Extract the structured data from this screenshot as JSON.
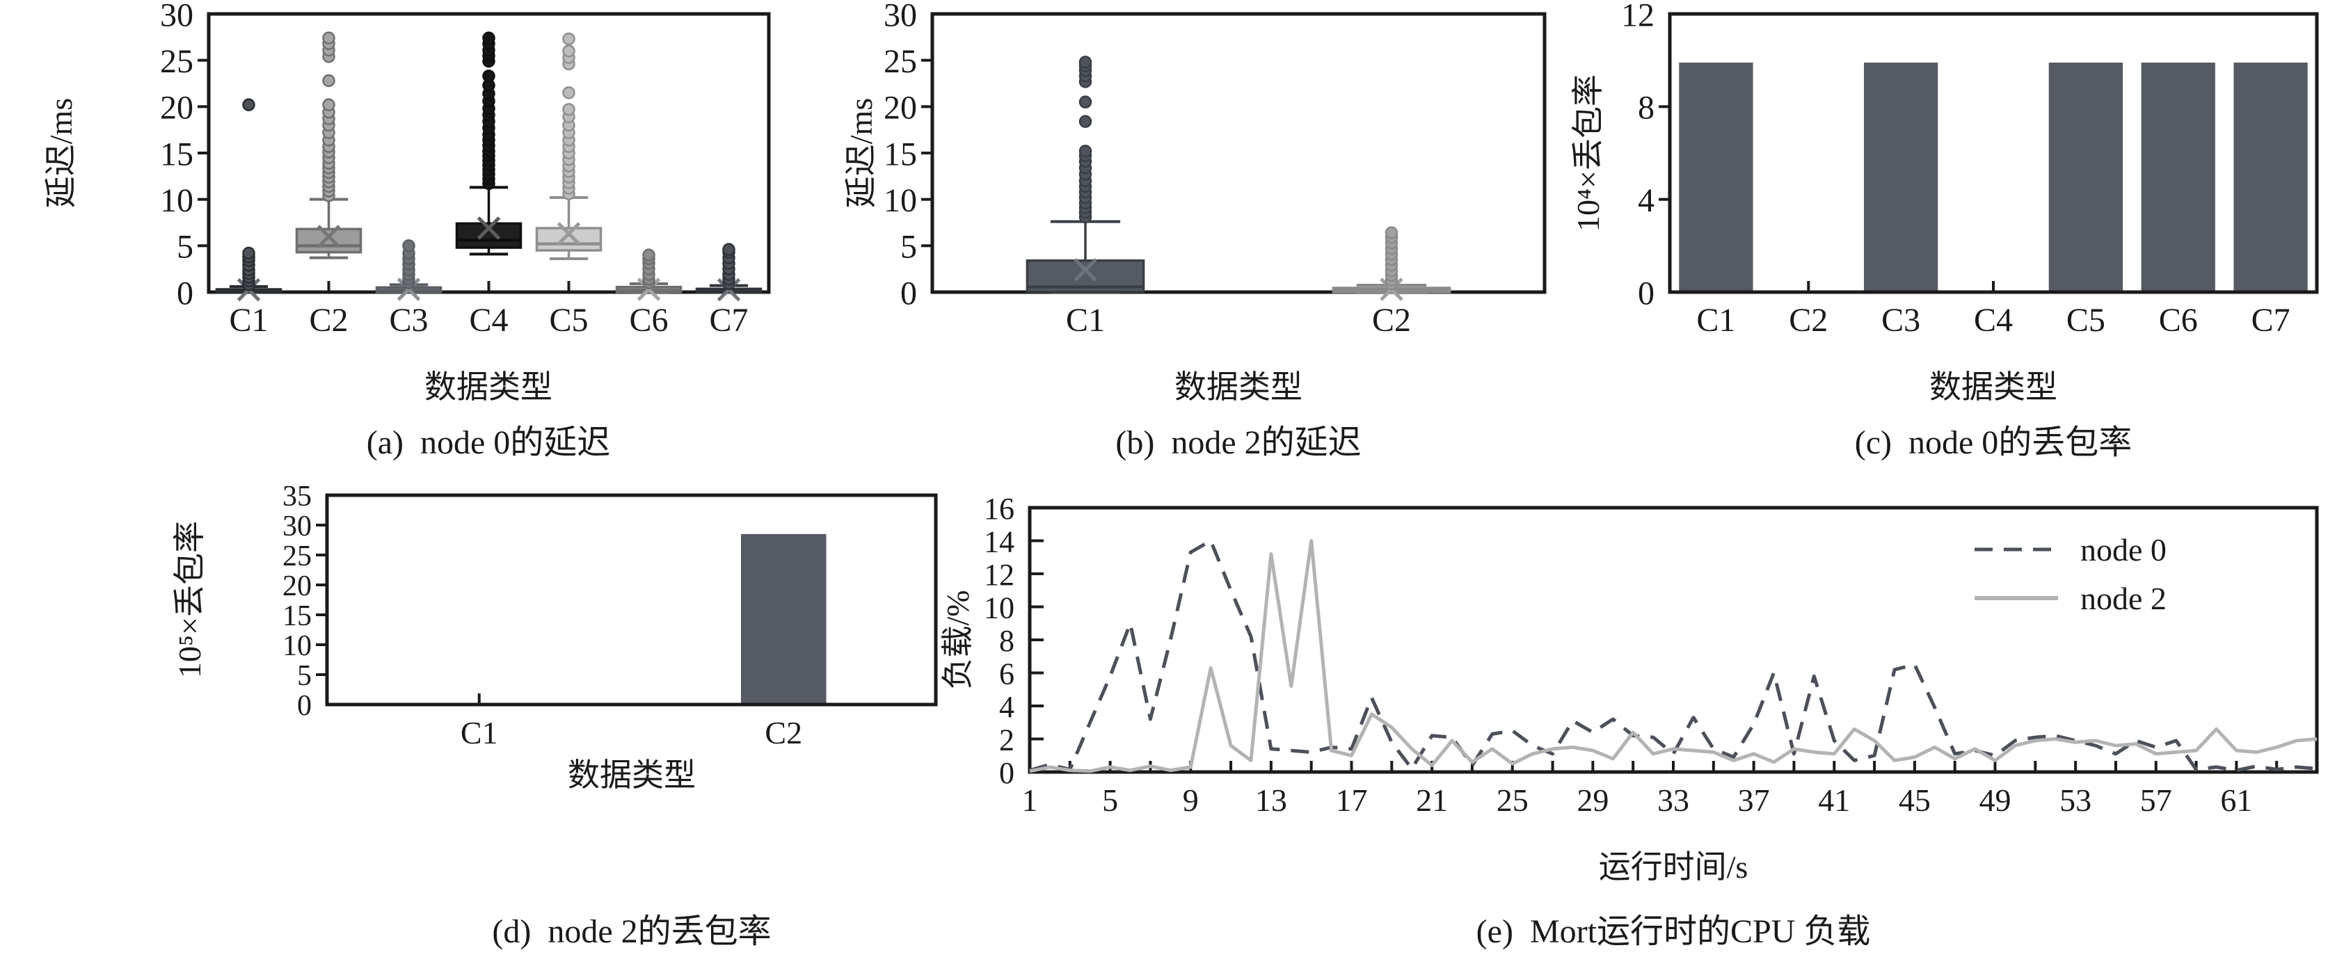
{
  "figure": {
    "background": "#ffffff",
    "axis_color": "#1a1a1a",
    "legend": {
      "entries": [
        "node 0",
        "node 2"
      ]
    }
  },
  "chart_data": [
    {
      "id": "a",
      "type": "boxplot",
      "caption": "(a)  node 0的延迟",
      "xlabel": "数据类型",
      "ylabel": "延迟/ms",
      "ylim": [
        0,
        30
      ],
      "yticks": [
        0,
        5,
        10,
        15,
        20,
        25,
        30
      ],
      "categories": [
        "C1",
        "C2",
        "C3",
        "C4",
        "C5",
        "C6",
        "C7"
      ],
      "boxes": [
        {
          "label": "C1",
          "q1": 0,
          "median": 0.1,
          "q3": 0.3,
          "mean": 0.25,
          "whislo": 0,
          "whishi": 0.6,
          "fill": "#3b3e43",
          "stroke": "#2a2d31",
          "mean_color": "#6d7176",
          "dot": "#4d5158",
          "outliers": [
            0.8,
            1.2,
            1.6,
            2.0,
            2.4,
            2.9,
            3.4,
            3.8,
            4.2,
            20.2
          ]
        },
        {
          "label": "C2",
          "q1": 4.3,
          "median": 5.0,
          "q3": 6.8,
          "mean": 6.0,
          "whislo": 3.7,
          "whishi": 10.0,
          "fill": "#9c9c9c",
          "stroke": "#6f6f6f",
          "mean_color": "#767676",
          "dot": "#a5a5a5",
          "outliers": [
            10.4,
            10.9,
            11.4,
            11.9,
            12.4,
            12.9,
            13.4,
            13.9,
            14.5,
            15.1,
            15.7,
            16.4,
            17.2,
            18.0,
            18.7,
            19.4,
            20.2,
            22.8,
            25.4,
            26.1,
            26.8,
            27.4
          ]
        },
        {
          "label": "C3",
          "q1": 0,
          "median": 0.15,
          "q3": 0.5,
          "mean": 0.3,
          "whislo": 0,
          "whishi": 0.8,
          "fill": "#76797e",
          "stroke": "#5a5d62",
          "mean_color": "#8b8f94",
          "dot": "#6e7176",
          "outliers": [
            1.0,
            1.4,
            1.9,
            2.4,
            3.0,
            3.6,
            4.2,
            5.0
          ]
        },
        {
          "label": "C4",
          "q1": 4.8,
          "median": 5.6,
          "q3": 7.4,
          "mean": 6.9,
          "whislo": 4.1,
          "whishi": 11.3,
          "fill": "#1f1f1f",
          "stroke": "#0f0f0f",
          "mean_color": "#5c5c5c",
          "dot": "#161616",
          "outliers": [
            11.7,
            12.2,
            12.7,
            13.2,
            13.7,
            14.2,
            14.7,
            15.2,
            15.8,
            16.4,
            17.0,
            17.7,
            18.4,
            19.1,
            19.8,
            20.6,
            21.4,
            22.3,
            23.3,
            24.9,
            25.5,
            26.1,
            26.8,
            27.4
          ]
        },
        {
          "label": "C5",
          "q1": 4.5,
          "median": 5.2,
          "q3": 6.9,
          "mean": 6.3,
          "whislo": 3.6,
          "whishi": 10.2,
          "fill": "#cdcdcd",
          "stroke": "#8f8f8f",
          "mean_color": "#9a9a9a",
          "dot": "#bcbcbc",
          "outliers": [
            10.6,
            11.2,
            11.8,
            12.4,
            13.0,
            13.6,
            14.3,
            15.0,
            15.7,
            16.4,
            17.2,
            18.0,
            18.9,
            19.7,
            21.5,
            24.6,
            25.3,
            26.0,
            27.3
          ]
        },
        {
          "label": "C6",
          "q1": 0,
          "median": 0.2,
          "q3": 0.55,
          "mean": 0.3,
          "whislo": 0,
          "whishi": 0.9,
          "fill": "#919191",
          "stroke": "#6f6f6f",
          "mean_color": "#a4a4a4",
          "dot": "#8c8c8c",
          "outliers": [
            1.0,
            1.4,
            1.9,
            2.5,
            3.1,
            3.6,
            4.0
          ]
        },
        {
          "label": "C7",
          "q1": 0,
          "median": 0.1,
          "q3": 0.35,
          "mean": 0.25,
          "whislo": 0,
          "whishi": 0.7,
          "fill": "#45484d",
          "stroke": "#303338",
          "mean_color": "#70747a",
          "dot": "#4d5158",
          "outliers": [
            0.9,
            1.4,
            1.9,
            2.5,
            3.1,
            3.7,
            4.3,
            4.6
          ]
        }
      ]
    },
    {
      "id": "b",
      "type": "boxplot",
      "caption": "(b)  node 2的延迟",
      "xlabel": "数据类型",
      "ylabel": "延迟/ms",
      "ylim": [
        0,
        30
      ],
      "yticks": [
        0,
        5,
        10,
        15,
        20,
        25,
        30
      ],
      "categories": [
        "C1",
        "C2"
      ],
      "boxes": [
        {
          "label": "C1",
          "q1": 0.05,
          "median": 0.55,
          "q3": 3.4,
          "mean": 2.4,
          "whislo": 0,
          "whishi": 7.6,
          "fill": "#565b63",
          "stroke": "#3a3e45",
          "mean_color": "#6d737b",
          "dot": "#4f545c",
          "outliers": [
            8.1,
            8.6,
            9.1,
            9.6,
            10.2,
            10.8,
            11.4,
            12.0,
            12.7,
            13.4,
            14.1,
            14.7,
            15.2,
            18.4,
            20.5,
            22.7,
            23.3,
            23.9,
            24.4,
            24.8
          ]
        },
        {
          "label": "C2",
          "q1": 0,
          "median": 0.2,
          "q3": 0.45,
          "mean": 0.3,
          "whislo": 0,
          "whishi": 0.75,
          "fill": "#a9a9a9",
          "stroke": "#8a8a8a",
          "mean_color": "#9f9f9f",
          "dot": "#a0a0a0",
          "outliers": [
            0.9,
            1.3,
            1.8,
            2.3,
            2.9,
            3.5,
            4.1,
            4.7,
            5.3,
            5.9,
            6.4
          ]
        }
      ]
    },
    {
      "id": "c",
      "type": "bar",
      "caption": "(c)  node 0的丢包率",
      "xlabel": "数据类型",
      "ylabel": "10⁴×丢包率",
      "ylim": [
        0,
        12
      ],
      "yticks": [
        0,
        4,
        8,
        12
      ],
      "categories": [
        "C1",
        "C2",
        "C3",
        "C4",
        "C5",
        "C6",
        "C7"
      ],
      "values": [
        9.9,
        0,
        9.9,
        0,
        9.9,
        9.9,
        9.9
      ],
      "bar_color": "#565a62"
    },
    {
      "id": "d",
      "type": "bar",
      "caption": "(d)  node 2的丢包率",
      "xlabel": "数据类型",
      "ylabel": "10⁵×丢包率",
      "ylim": [
        0,
        35
      ],
      "yticks": [
        0,
        5,
        10,
        15,
        20,
        25,
        30,
        35
      ],
      "categories": [
        "C1",
        "C2"
      ],
      "values": [
        0,
        28.5
      ],
      "bar_color": "#565a62"
    },
    {
      "id": "e",
      "type": "line",
      "caption": "(e)  Mort运行时的CPU 负载",
      "xlabel": "运行时间/s",
      "ylabel": "负载/%",
      "ylim": [
        0,
        16
      ],
      "yticks": [
        0,
        2,
        4,
        6,
        8,
        10,
        12,
        14,
        16
      ],
      "xlim": [
        1,
        65
      ],
      "xticks": [
        1,
        5,
        9,
        13,
        17,
        21,
        25,
        29,
        33,
        37,
        41,
        45,
        49,
        53,
        57,
        61
      ],
      "legend_position": "top-right",
      "series": [
        {
          "name": "node 0",
          "style": "dashed",
          "color": "#4b505a",
          "x_start": 1,
          "values": [
            0.1,
            0.45,
            0.15,
            3.0,
            5.8,
            9.0,
            3.2,
            8.0,
            13.3,
            14.0,
            11.0,
            8.2,
            1.4,
            1.3,
            1.2,
            1.5,
            1.4,
            4.5,
            1.8,
            0.2,
            2.2,
            2.1,
            0.4,
            2.3,
            2.5,
            1.6,
            1.1,
            3.1,
            2.4,
            3.2,
            2.2,
            2.1,
            1.1,
            3.3,
            1.4,
            0.9,
            2.9,
            6.0,
            1.1,
            5.8,
            1.9,
            0.7,
            1.0,
            6.2,
            6.5,
            3.9,
            1.1,
            1.3,
            1.0,
            1.9,
            2.1,
            2.2,
            1.9,
            1.6,
            1.1,
            1.9,
            1.5,
            1.9,
            0.15,
            0.3,
            0.1,
            0.35,
            0.15,
            0.3,
            0.2
          ]
        },
        {
          "name": "node 2",
          "style": "solid",
          "color": "#b3b3b3",
          "x_start": 1,
          "values": [
            0.05,
            0.3,
            0.1,
            0.05,
            0.3,
            0.1,
            0.35,
            0.1,
            0.3,
            6.3,
            1.6,
            0.7,
            13.2,
            5.2,
            14.0,
            1.3,
            1.0,
            3.5,
            2.7,
            1.4,
            0.4,
            1.9,
            0.6,
            1.4,
            0.5,
            1.1,
            1.4,
            1.5,
            1.3,
            0.8,
            2.4,
            1.1,
            1.4,
            1.3,
            1.2,
            0.7,
            1.1,
            0.6,
            1.4,
            1.2,
            1.1,
            2.6,
            1.9,
            0.7,
            0.9,
            1.5,
            0.8,
            1.4,
            0.7,
            1.6,
            1.9,
            2.0,
            1.8,
            1.9,
            1.6,
            1.7,
            1.1,
            1.2,
            1.3,
            2.6,
            1.3,
            1.2,
            1.5,
            1.9,
            2.0
          ]
        }
      ]
    }
  ]
}
